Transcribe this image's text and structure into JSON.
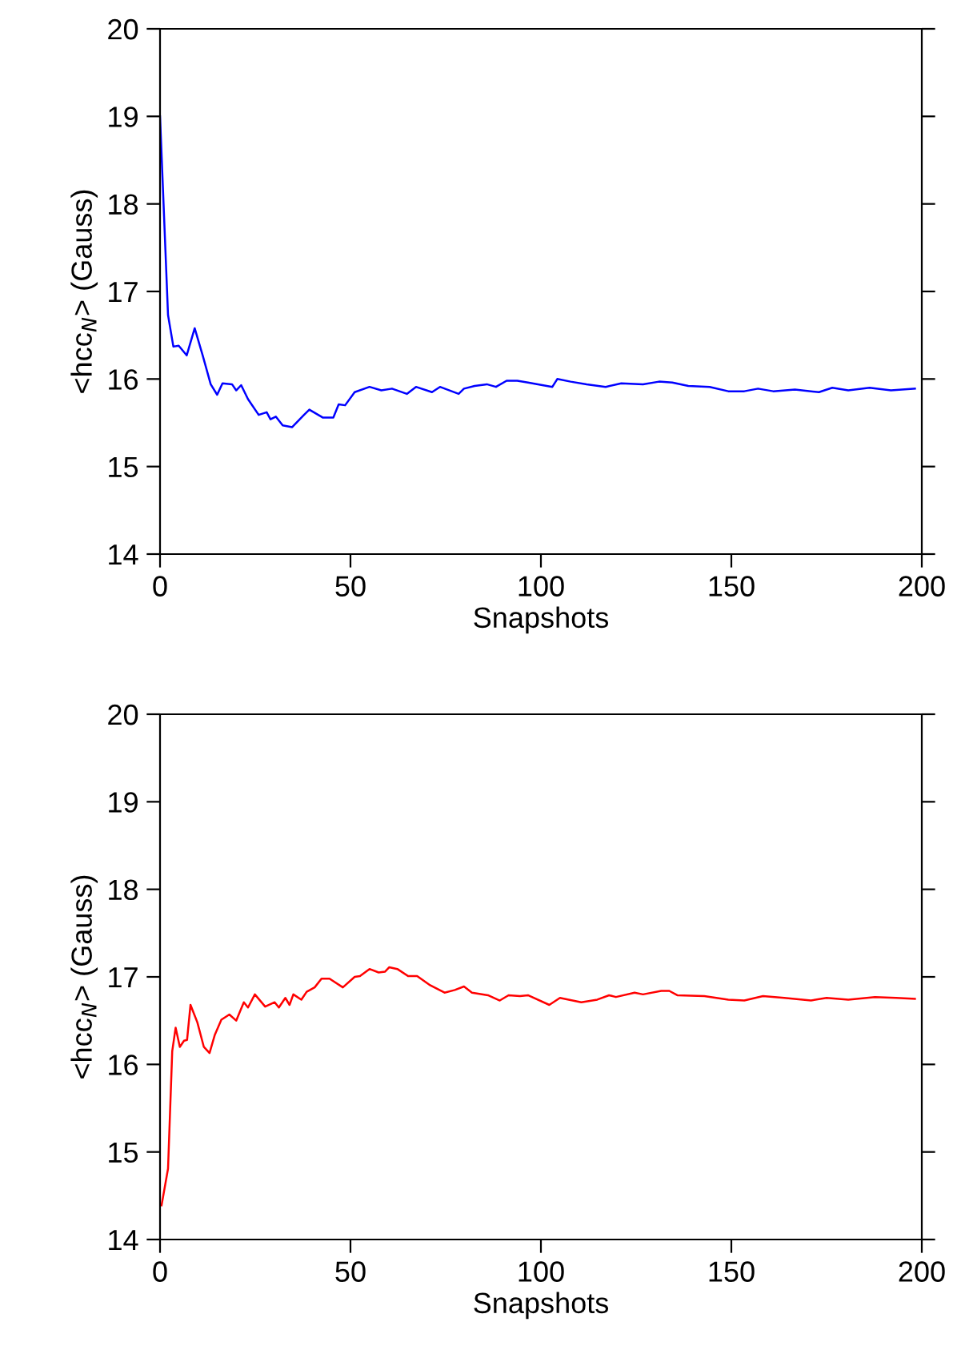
{
  "chart_data": [
    {
      "type": "line",
      "xlabel": "Snapshots",
      "ylabel": "<hcc$_{N}$> (Gauss)",
      "xlim": [
        0,
        200
      ],
      "ylim": [
        14,
        20
      ],
      "xticks": [
        0,
        50,
        100,
        150,
        200
      ],
      "yticks": [
        14,
        15,
        16,
        17,
        18,
        19,
        20
      ],
      "grid": false,
      "series": [
        {
          "color": "#0000ff",
          "x": [
            0,
            2.1,
            3.5,
            4.9,
            7.0,
            9.1,
            11.2,
            13.3,
            15,
            16.4,
            18.9,
            20,
            21.3,
            23.1,
            25.9,
            28,
            29,
            30.4,
            32.2,
            34.7,
            37.8,
            39.2,
            42.7,
            45.5,
            46.9,
            48.6,
            51.1,
            55,
            58.1,
            60.9,
            64.8,
            67.2,
            71.4,
            73.5,
            78.4,
            79.8,
            82.6,
            85.8,
            88.2,
            91,
            93.8,
            96.6,
            103,
            104.3,
            107.8,
            112,
            117,
            121.1,
            126.8,
            131,
            134.5,
            138.7,
            144.3,
            149.2,
            153.4,
            157,
            161,
            166.7,
            173,
            176.5,
            180.7,
            186.3,
            191.9,
            198.2
          ],
          "values": [
            19.0,
            16.73,
            16.37,
            16.38,
            16.27,
            16.58,
            16.27,
            15.94,
            15.82,
            15.95,
            15.94,
            15.87,
            15.93,
            15.77,
            15.59,
            15.62,
            15.54,
            15.57,
            15.47,
            15.45,
            15.59,
            15.65,
            15.56,
            15.56,
            15.71,
            15.7,
            15.85,
            15.91,
            15.87,
            15.89,
            15.83,
            15.91,
            15.85,
            15.91,
            15.83,
            15.89,
            15.92,
            15.94,
            15.91,
            15.98,
            15.98,
            15.96,
            15.91,
            16.0,
            15.97,
            15.94,
            15.91,
            15.95,
            15.94,
            15.97,
            15.96,
            15.92,
            15.91,
            15.86,
            15.86,
            15.89,
            15.86,
            15.88,
            15.85,
            15.9,
            15.87,
            15.9,
            15.87,
            15.89
          ]
        }
      ]
    },
    {
      "type": "line",
      "xlabel": "Snapshots",
      "ylabel": "<hcc$_{N}$> (Gauss)",
      "xlim": [
        0,
        200
      ],
      "ylim": [
        14,
        20
      ],
      "xticks": [
        0,
        50,
        100,
        150,
        200
      ],
      "yticks": [
        14,
        15,
        16,
        17,
        18,
        19,
        20
      ],
      "grid": false,
      "series": [
        {
          "color": "#ff0000",
          "x": [
            0.4,
            2.1,
            3.2,
            4.1,
            5.2,
            6.3,
            7.1,
            8.0,
            9.8,
            11.5,
            13,
            14.4,
            16.1,
            18.2,
            20,
            22,
            23.1,
            24.9,
            27.6,
            30.1,
            31.2,
            32.9,
            34,
            35,
            37.1,
            38.5,
            40.6,
            42.4,
            44.5,
            48,
            51.1,
            52.5,
            55,
            57.4,
            59.1,
            60.2,
            62.3,
            65.1,
            67.5,
            70.7,
            74.7,
            77.4,
            79.8,
            81.9,
            86.1,
            89.2,
            91.5,
            94.5,
            96.6,
            102.2,
            105,
            110.6,
            114.8,
            117.9,
            119.7,
            124.6,
            126.8,
            131.6,
            133.7,
            135.8,
            142.9,
            149.2,
            153.4,
            158.3,
            163.9,
            170.9,
            175,
            180.7,
            187.7,
            193.3,
            198.2
          ],
          "values": [
            14.39,
            14.81,
            16.15,
            16.42,
            16.2,
            16.27,
            16.28,
            16.68,
            16.48,
            16.2,
            16.13,
            16.34,
            16.51,
            16.57,
            16.5,
            16.71,
            16.65,
            16.8,
            16.66,
            16.71,
            16.65,
            16.76,
            16.68,
            16.8,
            16.74,
            16.83,
            16.88,
            16.98,
            16.98,
            16.88,
            17.0,
            17.01,
            17.09,
            17.05,
            17.06,
            17.11,
            17.09,
            17.01,
            17.01,
            16.91,
            16.82,
            16.85,
            16.89,
            16.82,
            16.79,
            16.73,
            16.79,
            16.78,
            16.79,
            16.68,
            16.76,
            16.71,
            16.74,
            16.79,
            16.77,
            16.82,
            16.8,
            16.84,
            16.84,
            16.79,
            16.78,
            16.74,
            16.73,
            16.78,
            16.76,
            16.73,
            16.76,
            16.74,
            16.77,
            16.76,
            16.75
          ]
        }
      ]
    }
  ]
}
